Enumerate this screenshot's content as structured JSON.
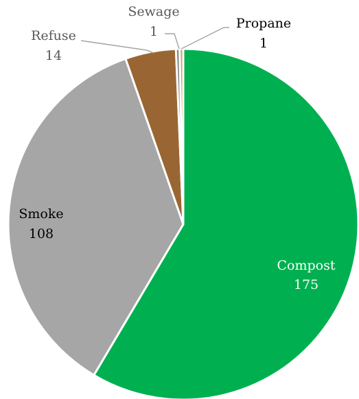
{
  "chart_data": {
    "type": "pie",
    "title": "",
    "start_angle_deg": 0,
    "direction": "clockwise",
    "slices": [
      {
        "label": "Compost",
        "value": 175,
        "color": "#00b050"
      },
      {
        "label": "Smoke",
        "value": 108,
        "color": "#a6a6a6"
      },
      {
        "label": "Refuse",
        "value": 14,
        "color": "#996633"
      },
      {
        "label": "Sewage",
        "value": 1,
        "color": "#7f7f7f"
      },
      {
        "label": "Propane",
        "value": 1,
        "color": "#c9a85a"
      }
    ],
    "label_colors": {
      "Compost": "#ffffff",
      "Smoke": "#000000",
      "Refuse": "#595959",
      "Sewage": "#595959",
      "Propane": "#000000"
    },
    "leader_color": "#a6a6a6"
  }
}
